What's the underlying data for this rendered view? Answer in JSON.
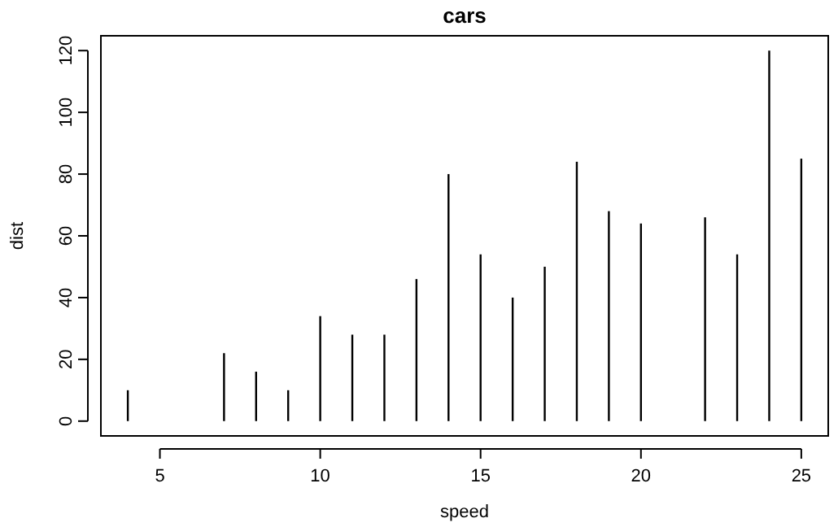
{
  "chart_data": {
    "type": "bar",
    "title": "cars",
    "xlabel": "speed",
    "ylabel": "dist",
    "x": [
      4,
      7,
      8,
      9,
      10,
      11,
      12,
      13,
      14,
      15,
      16,
      17,
      18,
      19,
      20,
      22,
      23,
      24,
      25
    ],
    "values": [
      10,
      22,
      16,
      10,
      34,
      28,
      28,
      46,
      80,
      54,
      40,
      50,
      84,
      68,
      64,
      66,
      54,
      120,
      85
    ],
    "color": "#000000",
    "xlim": [
      3.16,
      25.84
    ],
    "ylim": [
      -4.8,
      124.8
    ],
    "xticks": [
      5,
      10,
      15,
      20,
      25
    ],
    "yticks": [
      0,
      20,
      40,
      60,
      80,
      100,
      120
    ],
    "grid": false
  }
}
